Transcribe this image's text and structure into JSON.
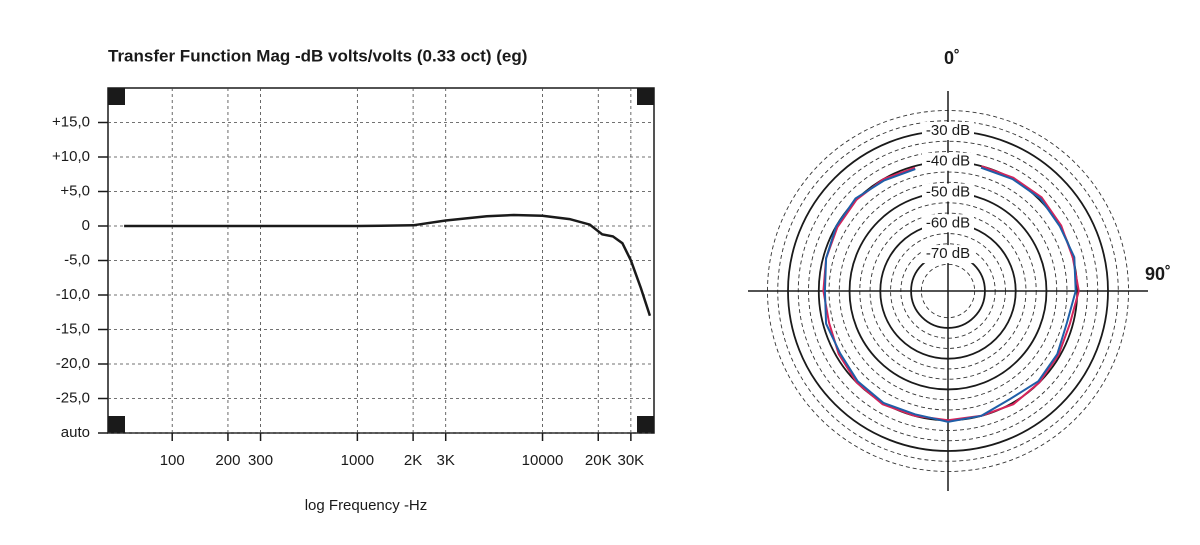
{
  "chart_data": [
    {
      "type": "line",
      "title": "Transfer Function Mag -dB volts/volts (0.33 oct) (eg)",
      "x_label": "log Frequency -Hz",
      "xscale": "log",
      "xlim": [
        45,
        40000
      ],
      "xticks": [
        100,
        200,
        300,
        1000,
        {
          "value": 2000,
          "label": "2K"
        },
        {
          "value": 3000,
          "label": "3K"
        },
        10000,
        {
          "value": 20000,
          "label": "20K"
        },
        {
          "value": 30000,
          "label": "30K"
        }
      ],
      "ylim": [
        -30,
        20
      ],
      "yticks": [
        {
          "value": 15,
          "label": "+15,0"
        },
        {
          "value": 10,
          "label": "+10,0"
        },
        {
          "value": 5,
          "label": "+5,0"
        },
        0,
        {
          "value": -5,
          "label": "-5,0"
        },
        {
          "value": -10,
          "label": "-10,0"
        },
        {
          "value": -15,
          "label": "-15,0"
        },
        {
          "value": -20,
          "label": "-20,0"
        },
        {
          "value": -25,
          "label": "-25,0"
        },
        {
          "value": -30,
          "label": "auto"
        }
      ],
      "grid": true,
      "x": [
        55,
        100,
        200,
        500,
        1000,
        2000,
        3000,
        5000,
        7000,
        10000,
        14000,
        18000,
        21000,
        24000,
        27000,
        30000,
        34000,
        38000
      ],
      "series": [
        {
          "color": "#1a1a1a",
          "values": [
            0,
            0,
            0,
            0,
            0,
            0.1,
            0.8,
            1.4,
            1.6,
            1.5,
            1.0,
            0.2,
            -1.2,
            -1.5,
            -2.5,
            -5,
            -9,
            -13
          ]
        }
      ]
    },
    {
      "type": "polar",
      "rlim": [
        -82,
        -30
      ],
      "rticks": [
        {
          "value": -30,
          "label": "-30 dB"
        },
        {
          "value": -40,
          "label": "-40 dB"
        },
        {
          "value": -50,
          "label": "-50 dB"
        },
        {
          "value": -60,
          "label": "-60 dB"
        },
        {
          "value": -70,
          "label": "-70 dB"
        }
      ],
      "thetaticks": [
        {
          "value": 0,
          "label": "0˚"
        },
        {
          "value": 90,
          "label": "90˚"
        }
      ],
      "theta": [
        15,
        30,
        45,
        60,
        75,
        90,
        105,
        120,
        135,
        150,
        165,
        180,
        195,
        210,
        225,
        240,
        255,
        270,
        285,
        300,
        315,
        330,
        345
      ],
      "series": [
        {
          "color": "#d6245a",
          "values": [
            -40,
            -39.5,
            -39,
            -39.5,
            -40,
            -39.5,
            -41,
            -40.5,
            -40,
            -39.5,
            -40,
            -40,
            -40,
            -39.5,
            -40,
            -41,
            -42,
            -41.5,
            -41,
            -40.5,
            -40,
            -40,
            -40.5
          ]
        },
        {
          "color": "#1f5fa8",
          "values": [
            -40.5,
            -40,
            -39.5,
            -40,
            -39.5,
            -40.5,
            -42,
            -41,
            -40.5,
            -41.5,
            -40,
            -39.5,
            -40.5,
            -40,
            -40.5,
            -41.5,
            -41,
            -42,
            -41,
            -40,
            -39.5,
            -40.5,
            -41
          ]
        }
      ]
    }
  ]
}
